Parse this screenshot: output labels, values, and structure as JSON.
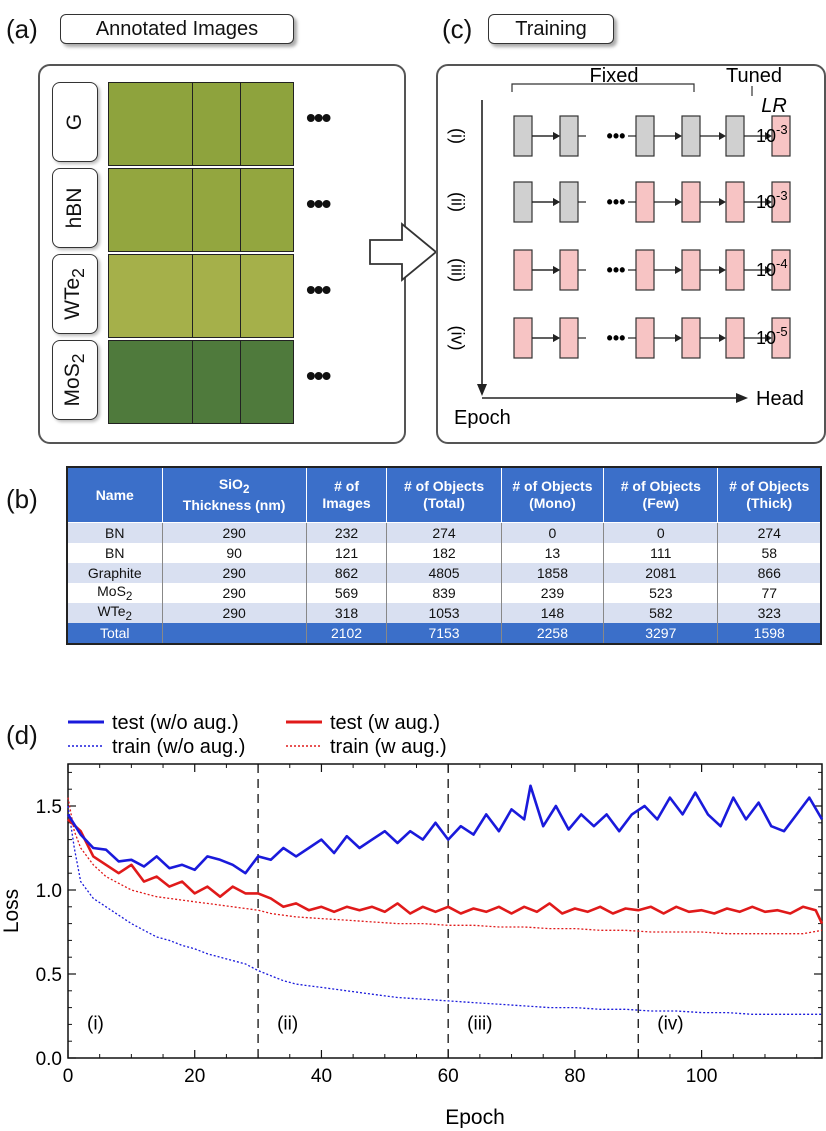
{
  "panel_a": {
    "label": "(a)",
    "title": "Annotated Images",
    "rows": [
      {
        "html": "G",
        "color": "#8ea33d"
      },
      {
        "html": "hBN",
        "color": "#93a63f"
      },
      {
        "html": "WTe<sub>2</sub>",
        "color": "#a5b04a"
      },
      {
        "html": "MoS<sub>2</sub>",
        "color": "#4f7a3c"
      }
    ],
    "dots": "•••"
  },
  "panel_c": {
    "label": "(c)",
    "title": "Training",
    "fixed_label": "Fixed",
    "tuned_label": "Tuned",
    "lr_label": "LR",
    "stage_labels": [
      "(i)",
      "(ii)",
      "(iii)",
      "(iv)"
    ],
    "lr_values": [
      {
        "base": "10",
        "exp": "-3"
      },
      {
        "base": "10",
        "exp": "-3"
      },
      {
        "base": "10",
        "exp": "-4"
      },
      {
        "base": "10",
        "exp": "-5"
      }
    ],
    "epoch_label": "Epoch",
    "head_label": "Head",
    "dots": "•••",
    "layer_states": [
      [
        "fixed",
        "fixed",
        "fixed",
        "fixed",
        "fixed",
        "tuned"
      ],
      [
        "fixed",
        "fixed",
        "tuned",
        "tuned",
        "tuned",
        "tuned"
      ],
      [
        "tuned",
        "tuned",
        "tuned",
        "tuned",
        "tuned",
        "tuned"
      ],
      [
        "tuned",
        "tuned",
        "tuned",
        "tuned",
        "tuned",
        "tuned"
      ]
    ],
    "colors": {
      "fixed": "#d0d0d0",
      "tuned": "#f7c4c4"
    }
  },
  "panel_b": {
    "label": "(b)",
    "headers": [
      "Name",
      "SiO<sub>2</sub><br>Thickness (nm)",
      "# of<br>Images",
      "# of Objects<br>(Total)",
      "# of Objects<br>(Mono)",
      "# of Objects<br>(Few)",
      "# of Objects<br>(Thick)"
    ],
    "rows": [
      [
        "BN",
        "290",
        "232",
        "274",
        "0",
        "0",
        "274"
      ],
      [
        "BN",
        "90",
        "121",
        "182",
        "13",
        "111",
        "58"
      ],
      [
        "Graphite",
        "290",
        "862",
        "4805",
        "1858",
        "2081",
        "866"
      ],
      [
        "MoS<sub>2</sub>",
        "290",
        "569",
        "839",
        "239",
        "523",
        "77"
      ],
      [
        "WTe<sub>2</sub>",
        "290",
        "318",
        "1053",
        "148",
        "582",
        "323"
      ]
    ],
    "total": [
      "Total",
      "",
      "2102",
      "7153",
      "2258",
      "3297",
      "1598"
    ]
  },
  "panel_d": {
    "label": "(d)",
    "legend": [
      "test (w/o aug.)",
      "test (w aug.)",
      "train (w/o aug.)",
      "train (w aug.)"
    ],
    "stage_labels": [
      "(i)",
      "(ii)",
      "(iii)",
      "(iv)"
    ],
    "stage_boundaries": [
      30,
      60,
      90
    ],
    "xticks": [
      "0",
      "20",
      "40",
      "60",
      "80",
      "100"
    ],
    "yticks": [
      "0.0",
      "0.5",
      "1.0",
      "1.5"
    ]
  },
  "chart_data": {
    "type": "line",
    "xlabel": "Epoch",
    "ylabel": "Loss",
    "xlim": [
      0,
      119
    ],
    "ylim": [
      0,
      1.75
    ],
    "colors": {
      "test_wo": "#1a1adb",
      "test_w": "#e01a1a",
      "train_wo": "#1a1adb",
      "train_w": "#e01a1a"
    },
    "series": [
      {
        "name": "test (w/o aug.)",
        "style": "solid",
        "points": [
          [
            0,
            1.45
          ],
          [
            2,
            1.33
          ],
          [
            4,
            1.25
          ],
          [
            6,
            1.24
          ],
          [
            8,
            1.17
          ],
          [
            10,
            1.18
          ],
          [
            12,
            1.14
          ],
          [
            14,
            1.2
          ],
          [
            16,
            1.13
          ],
          [
            18,
            1.15
          ],
          [
            20,
            1.12
          ],
          [
            22,
            1.2
          ],
          [
            24,
            1.18
          ],
          [
            26,
            1.15
          ],
          [
            28,
            1.1
          ],
          [
            30,
            1.2
          ],
          [
            32,
            1.18
          ],
          [
            34,
            1.25
          ],
          [
            36,
            1.2
          ],
          [
            38,
            1.25
          ],
          [
            40,
            1.3
          ],
          [
            42,
            1.22
          ],
          [
            44,
            1.32
          ],
          [
            46,
            1.25
          ],
          [
            48,
            1.3
          ],
          [
            50,
            1.35
          ],
          [
            52,
            1.28
          ],
          [
            54,
            1.35
          ],
          [
            56,
            1.3
          ],
          [
            58,
            1.4
          ],
          [
            60,
            1.3
          ],
          [
            62,
            1.38
          ],
          [
            64,
            1.33
          ],
          [
            66,
            1.45
          ],
          [
            68,
            1.35
          ],
          [
            70,
            1.48
          ],
          [
            72,
            1.42
          ],
          [
            73,
            1.62
          ],
          [
            75,
            1.38
          ],
          [
            77,
            1.5
          ],
          [
            79,
            1.36
          ],
          [
            81,
            1.45
          ],
          [
            83,
            1.38
          ],
          [
            85,
            1.45
          ],
          [
            87,
            1.35
          ],
          [
            89,
            1.45
          ],
          [
            91,
            1.5
          ],
          [
            93,
            1.42
          ],
          [
            95,
            1.55
          ],
          [
            97,
            1.45
          ],
          [
            99,
            1.58
          ],
          [
            101,
            1.45
          ],
          [
            103,
            1.38
          ],
          [
            105,
            1.55
          ],
          [
            107,
            1.42
          ],
          [
            109,
            1.52
          ],
          [
            111,
            1.38
          ],
          [
            113,
            1.35
          ],
          [
            115,
            1.45
          ],
          [
            117,
            1.55
          ],
          [
            119,
            1.42
          ]
        ]
      },
      {
        "name": "test (w aug.)",
        "style": "solid",
        "points": [
          [
            0,
            1.42
          ],
          [
            2,
            1.35
          ],
          [
            4,
            1.2
          ],
          [
            6,
            1.15
          ],
          [
            8,
            1.1
          ],
          [
            10,
            1.15
          ],
          [
            12,
            1.05
          ],
          [
            14,
            1.08
          ],
          [
            16,
            1.02
          ],
          [
            18,
            1.05
          ],
          [
            20,
            0.98
          ],
          [
            22,
            1.02
          ],
          [
            24,
            0.96
          ],
          [
            26,
            1.02
          ],
          [
            28,
            0.98
          ],
          [
            30,
            0.98
          ],
          [
            32,
            0.95
          ],
          [
            34,
            0.9
          ],
          [
            36,
            0.92
          ],
          [
            38,
            0.88
          ],
          [
            40,
            0.9
          ],
          [
            42,
            0.87
          ],
          [
            44,
            0.9
          ],
          [
            46,
            0.88
          ],
          [
            48,
            0.9
          ],
          [
            50,
            0.87
          ],
          [
            52,
            0.92
          ],
          [
            54,
            0.86
          ],
          [
            56,
            0.9
          ],
          [
            58,
            0.87
          ],
          [
            60,
            0.9
          ],
          [
            62,
            0.86
          ],
          [
            64,
            0.89
          ],
          [
            66,
            0.87
          ],
          [
            68,
            0.9
          ],
          [
            70,
            0.86
          ],
          [
            72,
            0.9
          ],
          [
            74,
            0.87
          ],
          [
            76,
            0.92
          ],
          [
            78,
            0.86
          ],
          [
            80,
            0.89
          ],
          [
            82,
            0.87
          ],
          [
            84,
            0.9
          ],
          [
            86,
            0.86
          ],
          [
            88,
            0.89
          ],
          [
            90,
            0.88
          ],
          [
            92,
            0.9
          ],
          [
            94,
            0.86
          ],
          [
            96,
            0.9
          ],
          [
            98,
            0.87
          ],
          [
            100,
            0.88
          ],
          [
            102,
            0.86
          ],
          [
            104,
            0.89
          ],
          [
            106,
            0.87
          ],
          [
            108,
            0.9
          ],
          [
            110,
            0.87
          ],
          [
            112,
            0.88
          ],
          [
            114,
            0.86
          ],
          [
            116,
            0.9
          ],
          [
            118,
            0.88
          ],
          [
            119,
            0.8
          ]
        ]
      },
      {
        "name": "train (w/o aug.)",
        "style": "dotted",
        "points": [
          [
            0,
            1.5
          ],
          [
            1,
            1.25
          ],
          [
            2,
            1.05
          ],
          [
            4,
            0.95
          ],
          [
            6,
            0.9
          ],
          [
            8,
            0.85
          ],
          [
            10,
            0.8
          ],
          [
            12,
            0.76
          ],
          [
            14,
            0.72
          ],
          [
            16,
            0.7
          ],
          [
            18,
            0.67
          ],
          [
            20,
            0.65
          ],
          [
            22,
            0.62
          ],
          [
            24,
            0.6
          ],
          [
            26,
            0.58
          ],
          [
            28,
            0.56
          ],
          [
            30,
            0.52
          ],
          [
            32,
            0.49
          ],
          [
            34,
            0.46
          ],
          [
            36,
            0.44
          ],
          [
            38,
            0.43
          ],
          [
            40,
            0.42
          ],
          [
            44,
            0.4
          ],
          [
            48,
            0.38
          ],
          [
            52,
            0.36
          ],
          [
            56,
            0.35
          ],
          [
            60,
            0.34
          ],
          [
            64,
            0.33
          ],
          [
            68,
            0.32
          ],
          [
            72,
            0.31
          ],
          [
            76,
            0.3
          ],
          [
            80,
            0.3
          ],
          [
            84,
            0.29
          ],
          [
            88,
            0.29
          ],
          [
            92,
            0.28
          ],
          [
            96,
            0.28
          ],
          [
            100,
            0.27
          ],
          [
            104,
            0.27
          ],
          [
            108,
            0.26
          ],
          [
            112,
            0.26
          ],
          [
            116,
            0.26
          ],
          [
            119,
            0.26
          ]
        ]
      },
      {
        "name": "train (w aug.)",
        "style": "dotted",
        "points": [
          [
            0,
            1.55
          ],
          [
            1,
            1.35
          ],
          [
            2,
            1.25
          ],
          [
            4,
            1.15
          ],
          [
            6,
            1.08
          ],
          [
            8,
            1.04
          ],
          [
            10,
            1.0
          ],
          [
            12,
            0.98
          ],
          [
            14,
            0.96
          ],
          [
            16,
            0.95
          ],
          [
            18,
            0.94
          ],
          [
            20,
            0.93
          ],
          [
            22,
            0.92
          ],
          [
            24,
            0.91
          ],
          [
            26,
            0.9
          ],
          [
            28,
            0.89
          ],
          [
            30,
            0.88
          ],
          [
            32,
            0.86
          ],
          [
            34,
            0.85
          ],
          [
            36,
            0.84
          ],
          [
            40,
            0.83
          ],
          [
            44,
            0.82
          ],
          [
            48,
            0.81
          ],
          [
            52,
            0.8
          ],
          [
            56,
            0.8
          ],
          [
            60,
            0.79
          ],
          [
            64,
            0.79
          ],
          [
            68,
            0.78
          ],
          [
            72,
            0.78
          ],
          [
            76,
            0.77
          ],
          [
            80,
            0.77
          ],
          [
            84,
            0.76
          ],
          [
            88,
            0.76
          ],
          [
            92,
            0.75
          ],
          [
            96,
            0.75
          ],
          [
            100,
            0.75
          ],
          [
            104,
            0.74
          ],
          [
            108,
            0.74
          ],
          [
            112,
            0.74
          ],
          [
            116,
            0.74
          ],
          [
            119,
            0.76
          ]
        ]
      }
    ]
  }
}
